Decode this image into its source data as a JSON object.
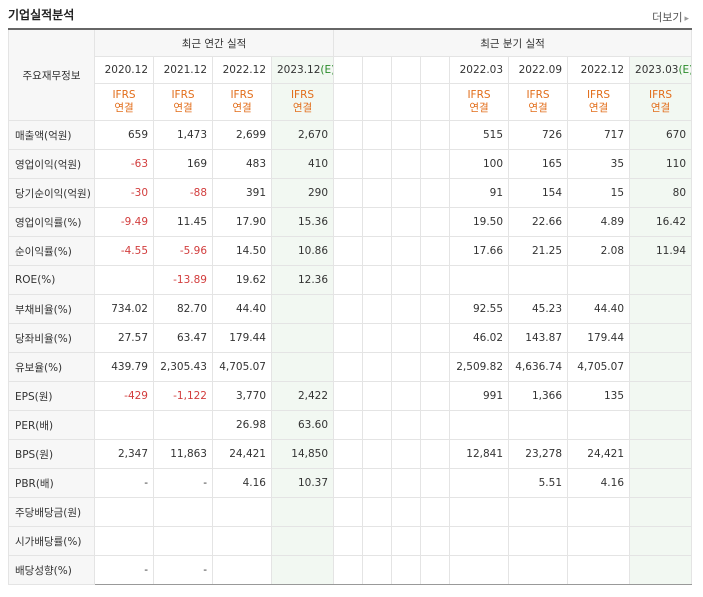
{
  "header": {
    "title": "기업실적분석",
    "more_label": "더보기"
  },
  "table": {
    "row_header_label": "주요재무정보",
    "annual_group": "최근 연간 실적",
    "quarter_group": "최근 분기 실적",
    "annual_periods": [
      "2020.12",
      "2021.12",
      "2022.12",
      "2023.12(E)"
    ],
    "quarter_periods": [
      "2022.03",
      "2022.09",
      "2022.12",
      "2023.03(E)"
    ],
    "ifrs_top": "IFRS",
    "ifrs_bottom": "연결",
    "rows": [
      {
        "label": "매출액(억원)",
        "annual": [
          "659",
          "1,473",
          "2,699",
          "2,670"
        ],
        "quarter": [
          "515",
          "726",
          "717",
          "670"
        ]
      },
      {
        "label": "영업이익(억원)",
        "annual": [
          "-63",
          "169",
          "483",
          "410"
        ],
        "quarter": [
          "100",
          "165",
          "35",
          "110"
        ]
      },
      {
        "label": "당기순이익(억원)",
        "annual": [
          "-30",
          "-88",
          "391",
          "290"
        ],
        "quarter": [
          "91",
          "154",
          "15",
          "80"
        ]
      },
      {
        "label": "영업이익률(%)",
        "annual": [
          "-9.49",
          "11.45",
          "17.90",
          "15.36"
        ],
        "quarter": [
          "19.50",
          "22.66",
          "4.89",
          "16.42"
        ]
      },
      {
        "label": "순이익률(%)",
        "annual": [
          "-4.55",
          "-5.96",
          "14.50",
          "10.86"
        ],
        "quarter": [
          "17.66",
          "21.25",
          "2.08",
          "11.94"
        ]
      },
      {
        "label": "ROE(%)",
        "annual": [
          "",
          "-13.89",
          "19.62",
          "12.36"
        ],
        "quarter": [
          "",
          "",
          "",
          ""
        ]
      },
      {
        "label": "부채비율(%)",
        "annual": [
          "734.02",
          "82.70",
          "44.40",
          ""
        ],
        "quarter": [
          "92.55",
          "45.23",
          "44.40",
          ""
        ]
      },
      {
        "label": "당좌비율(%)",
        "annual": [
          "27.57",
          "63.47",
          "179.44",
          ""
        ],
        "quarter": [
          "46.02",
          "143.87",
          "179.44",
          ""
        ]
      },
      {
        "label": "유보율(%)",
        "annual": [
          "439.79",
          "2,305.43",
          "4,705.07",
          ""
        ],
        "quarter": [
          "2,509.82",
          "4,636.74",
          "4,705.07",
          ""
        ]
      },
      {
        "label": "EPS(원)",
        "annual": [
          "-429",
          "-1,122",
          "3,770",
          "2,422"
        ],
        "quarter": [
          "991",
          "1,366",
          "135",
          ""
        ]
      },
      {
        "label": "PER(배)",
        "annual": [
          "",
          "",
          "26.98",
          "63.60"
        ],
        "quarter": [
          "",
          "",
          "",
          ""
        ]
      },
      {
        "label": "BPS(원)",
        "annual": [
          "2,347",
          "11,863",
          "24,421",
          "14,850"
        ],
        "quarter": [
          "12,841",
          "23,278",
          "24,421",
          ""
        ]
      },
      {
        "label": "PBR(배)",
        "annual": [
          "-",
          "-",
          "4.16",
          "10.37"
        ],
        "quarter": [
          "",
          "5.51",
          "4.16",
          ""
        ]
      },
      {
        "label": "주당배당금(원)",
        "annual": [
          "",
          "",
          "",
          ""
        ],
        "quarter": [
          "",
          "",
          "",
          ""
        ]
      },
      {
        "label": "시가배당률(%)",
        "annual": [
          "",
          "",
          "",
          ""
        ],
        "quarter": [
          "",
          "",
          "",
          ""
        ]
      },
      {
        "label": "배당성향(%)",
        "annual": [
          "-",
          "-",
          "",
          ""
        ],
        "quarter": [
          "",
          "",
          "",
          ""
        ]
      }
    ]
  },
  "colors": {
    "negative": "#d23d3d",
    "ifrs": "#e26d1a",
    "estimate_bg": "#f2f8f2"
  }
}
